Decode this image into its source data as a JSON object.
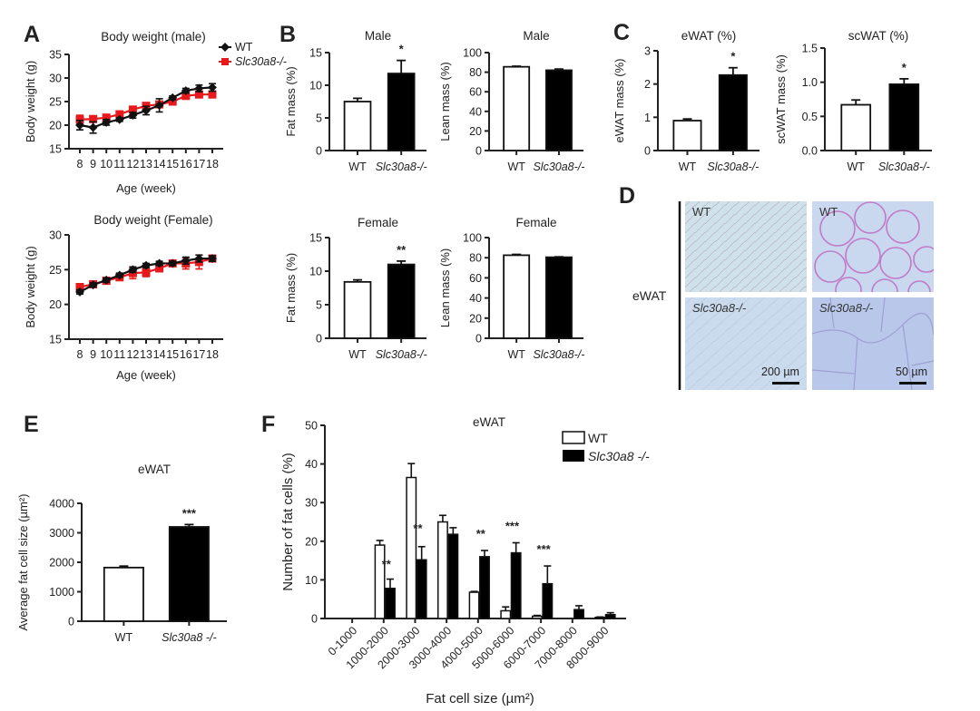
{
  "colors": {
    "wt": "#111111",
    "ko": "#e8191c",
    "bar_wt": "#ffffff",
    "bar_ko": "#000000",
    "axis": "#222222"
  },
  "panels": {
    "A": "A",
    "B": "B",
    "C": "C",
    "D": "D",
    "E": "E",
    "F": "F"
  },
  "legend_A": {
    "wt": "WT",
    "ko": "Slc30a8-/-"
  },
  "legend_F": {
    "wt": "WT",
    "ko": "Slc30a8 -/-"
  },
  "histology": {
    "row_label": "eWAT",
    "tiles": [
      {
        "label": "WT",
        "italic": false
      },
      {
        "label": "WT",
        "italic": false
      },
      {
        "label": "Slc30a8-/-",
        "italic": true,
        "scale": "200 µm"
      },
      {
        "label": "Slc30a8-/-",
        "italic": true,
        "scale": "50 µm"
      }
    ]
  },
  "chart_data": [
    {
      "id": "A1",
      "type": "line",
      "title": "Body weight (male)",
      "xlabel": "Age (week)",
      "ylabel": "Body weight (g)",
      "x": [
        8,
        9,
        10,
        11,
        12,
        13,
        14,
        15,
        16,
        17,
        18
      ],
      "ylim": [
        15,
        35
      ],
      "yticks": [
        15,
        20,
        25,
        30,
        35
      ],
      "series": [
        {
          "name": "WT",
          "color": "#111111",
          "marker": "diamond",
          "values": [
            20.0,
            19.5,
            20.6,
            21.2,
            22.1,
            23.1,
            24.2,
            25.8,
            27.3,
            27.8,
            28.0
          ],
          "errors": [
            1.0,
            1.2,
            0.6,
            0.4,
            0.6,
            0.9,
            1.4,
            0.4,
            0.5,
            0.7,
            0.8
          ]
        },
        {
          "name": "Slc30a8-/-",
          "color": "#e8191c",
          "marker": "square",
          "values": [
            21.2,
            21.3,
            21.6,
            22.3,
            23.3,
            24.1,
            24.4,
            25.0,
            26.2,
            26.5,
            26.5
          ],
          "errors": [
            0.9,
            0.3,
            0.4,
            0.5,
            0.4,
            0.4,
            0.6,
            0.4,
            0.4,
            0.5,
            0.5
          ]
        }
      ]
    },
    {
      "id": "A2",
      "type": "line",
      "title": "Body weight (Female)",
      "xlabel": "Age (week)",
      "ylabel": "Body weight (g)",
      "x": [
        8,
        9,
        10,
        11,
        12,
        13,
        14,
        15,
        16,
        17,
        18
      ],
      "ylim": [
        15,
        30
      ],
      "yticks": [
        15,
        20,
        25,
        30
      ],
      "series": [
        {
          "name": "WT",
          "color": "#111111",
          "marker": "diamond",
          "values": [
            21.8,
            22.8,
            23.5,
            24.2,
            25.0,
            25.6,
            25.9,
            25.9,
            26.3,
            26.6,
            26.6
          ],
          "errors": [
            0.3,
            0.3,
            0.3,
            0.3,
            0.4,
            0.3,
            0.3,
            0.3,
            0.5,
            0.5,
            0.4
          ]
        },
        {
          "name": "Slc30a8-/-",
          "color": "#e8191c",
          "marker": "square",
          "values": [
            22.5,
            22.9,
            23.4,
            23.9,
            24.5,
            24.6,
            25.2,
            25.9,
            25.9,
            26.1,
            26.6
          ],
          "errors": [
            0.4,
            0.3,
            0.3,
            0.4,
            0.8,
            0.6,
            0.5,
            0.4,
            0.8,
            1.0,
            0.4
          ]
        }
      ]
    },
    {
      "id": "B1",
      "type": "bar",
      "title": "Male",
      "ylabel": "Fat mass (%)",
      "categories": [
        "WT",
        "Slc30a8-/-"
      ],
      "values": [
        7.5,
        11.8
      ],
      "errors": [
        0.5,
        2.0
      ],
      "ylim": [
        0,
        15
      ],
      "yticks": [
        0,
        5,
        10,
        15
      ],
      "significance": [
        "",
        "*"
      ]
    },
    {
      "id": "B2",
      "type": "bar",
      "title": "Male",
      "ylabel": "Lean mass (%)",
      "categories": [
        "WT",
        "Slc30a8-/-"
      ],
      "values": [
        85.5,
        82.0
      ],
      "errors": [
        0.6,
        1.2
      ],
      "ylim": [
        0,
        100
      ],
      "yticks": [
        0,
        20,
        40,
        60,
        80,
        100
      ],
      "significance": [
        "",
        ""
      ]
    },
    {
      "id": "B3",
      "type": "bar",
      "title": "Female",
      "ylabel": "Fat mass (%)",
      "categories": [
        "WT",
        "Slc30a8-/-"
      ],
      "values": [
        8.4,
        11.0
      ],
      "errors": [
        0.3,
        0.5
      ],
      "ylim": [
        0,
        15
      ],
      "yticks": [
        0,
        5,
        10,
        15
      ],
      "significance": [
        "",
        "**"
      ]
    },
    {
      "id": "B4",
      "type": "bar",
      "title": "Female",
      "ylabel": "Lean mass (%)",
      "categories": [
        "WT",
        "Slc30a8-/-"
      ],
      "values": [
        82.5,
        80.5
      ],
      "errors": [
        0.8,
        0.4
      ],
      "ylim": [
        0,
        100
      ],
      "yticks": [
        0,
        20,
        40,
        60,
        80,
        100
      ],
      "significance": [
        "",
        ""
      ]
    },
    {
      "id": "C1",
      "type": "bar",
      "title": "eWAT (%)",
      "ylabel": "eWAT mass (%)",
      "categories": [
        "WT",
        "Slc30a8-/-"
      ],
      "values": [
        0.9,
        2.27
      ],
      "errors": [
        0.05,
        0.22
      ],
      "ylim": [
        0,
        3
      ],
      "yticks": [
        0,
        1,
        2,
        3
      ],
      "significance": [
        "",
        "*"
      ]
    },
    {
      "id": "C2",
      "type": "bar",
      "title": "scWAT (%)",
      "ylabel": "scWAT mass (%)",
      "categories": [
        "WT",
        "Slc30a8-/-"
      ],
      "values": [
        0.67,
        0.97
      ],
      "errors": [
        0.07,
        0.08
      ],
      "ylim": [
        0,
        1.5
      ],
      "yticks": [
        "0.0",
        "0.5",
        "1.0",
        "1.5"
      ],
      "significance": [
        "",
        "*"
      ]
    },
    {
      "id": "E",
      "type": "bar",
      "title": "eWAT",
      "ylabel": "Average fat cell size (µm²)",
      "categories": [
        "WT",
        "Slc30a8 -/-"
      ],
      "values": [
        1820,
        3200
      ],
      "errors": [
        50,
        80
      ],
      "ylim": [
        0,
        4000
      ],
      "yticks": [
        0,
        1000,
        2000,
        3000,
        4000
      ],
      "significance": [
        "",
        "***"
      ]
    },
    {
      "id": "F",
      "type": "bar",
      "title": "eWAT",
      "xlabel": "Fat cell size (µm²)",
      "ylabel": "Number of fat cells (%)",
      "categories": [
        "0-1000",
        "1000-2000",
        "2000-3000",
        "3000-4000",
        "4000-5000",
        "5000-6000",
        "6000-7000",
        "7000-8000",
        "8000-9000"
      ],
      "ylim": [
        0,
        50
      ],
      "yticks": [
        0,
        10,
        20,
        30,
        40,
        50
      ],
      "legend": "top-right",
      "series": [
        {
          "name": "WT",
          "fill": "#ffffff",
          "values": [
            0,
            19.0,
            36.5,
            25.0,
            6.8,
            2.0,
            0.6,
            0,
            0.3
          ],
          "errors": [
            0,
            1.2,
            3.6,
            1.7,
            0.2,
            1.0,
            0.2,
            0,
            0.1
          ]
        },
        {
          "name": "Slc30a8 -/-",
          "fill": "#000000",
          "values": [
            0,
            7.8,
            15.2,
            21.8,
            16.0,
            17.0,
            9.0,
            2.3,
            1.0
          ],
          "errors": [
            0,
            2.4,
            3.4,
            1.7,
            1.6,
            2.6,
            4.6,
            1.0,
            0.5
          ]
        }
      ],
      "significance": [
        "",
        "**",
        "**",
        "",
        "**",
        "***",
        "***",
        "",
        ""
      ]
    }
  ]
}
